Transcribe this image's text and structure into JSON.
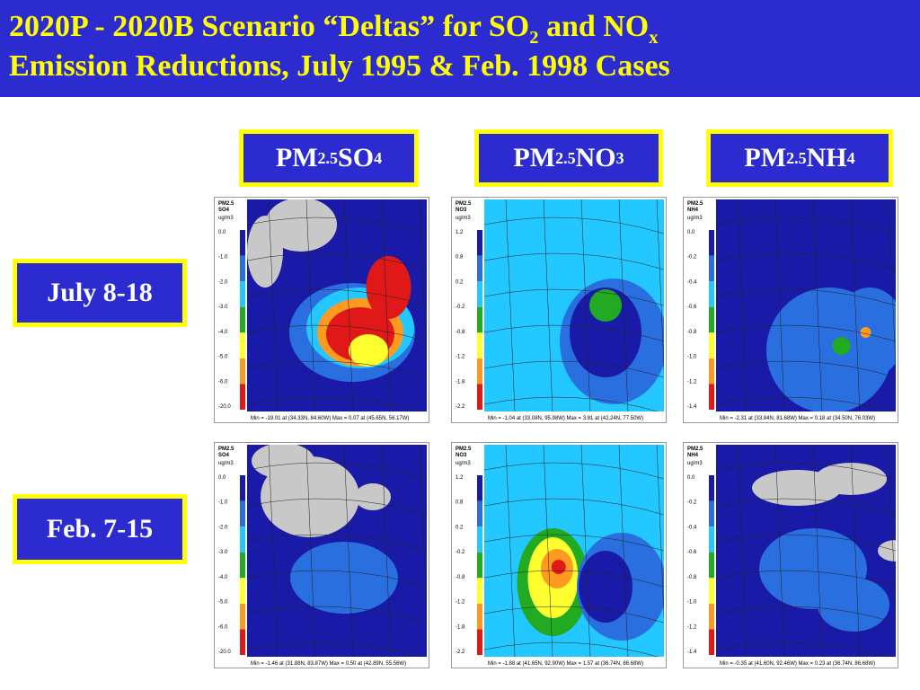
{
  "title": {
    "line1_pre": "2020P - 2020B Scenario “Deltas” for SO",
    "line1_sub": "2",
    "line1_mid": " and NO",
    "line1_sup": "x",
    "line2": "Emission Reductions,  July 1995 & Feb. 1998 Cases"
  },
  "columns": [
    {
      "pre": "PM",
      "sub": "2.5",
      "post": " SO",
      "post_sub": "4"
    },
    {
      "pre": "PM",
      "sub": "2.5",
      "post": " NO",
      "post_sub": "3"
    },
    {
      "pre": "PM",
      "sub": "2.5",
      "post": " NH",
      "post_sub": "4"
    }
  ],
  "rows": [
    {
      "label": "July 8-18"
    },
    {
      "label": "Feb. 7-15"
    }
  ],
  "maps": [
    {
      "species": "PM2.5\nSO4",
      "unit": "ug/m3",
      "ticks": [
        "0.0",
        "-1.0",
        "-2.0",
        "-3.0",
        "-4.0",
        "-5.0",
        "-6.0",
        "-20.0"
      ],
      "footer": "Min = -19.01 at (34.33N, 84.60W)        Max = 0.07 at (45.65N, 56.17W)"
    },
    {
      "species": "PM2.5\nNO3",
      "unit": "ug/m3",
      "ticks": [
        "1.2",
        "0.8",
        "0.2",
        "-0.2",
        "-0.8",
        "-1.2",
        "-1.8",
        "-2.2"
      ],
      "footer": "Min = -1.04 at (33.08N, 95.98W)        Max = 3.81 at (42.24N, 77.50W)"
    },
    {
      "species": "PM2.5\nNH4",
      "unit": "ug/m3",
      "ticks": [
        "0.0",
        "-0.2",
        "-0.4",
        "-0.6",
        "-0.8",
        "-1.0",
        "-1.2",
        "-1.4"
      ],
      "footer": "Min = -2.31 at (33.84N, 81.68W)        Max = 0.18 at (34.50N, 76.03W)"
    },
    {
      "species": "PM2.5\nSO4",
      "unit": "ug/m3",
      "ticks": [
        "0.0",
        "-1.0",
        "-2.0",
        "-3.0",
        "-4.0",
        "-5.0",
        "-6.0",
        "-20.0"
      ],
      "footer": "Min = -1.46 at (31.88N, 83.87W)        Max = 0.50 at (42.89N, 55.56W)"
    },
    {
      "species": "PM2.5\nNO3",
      "unit": "ug/m3",
      "ticks": [
        "1.2",
        "0.8",
        "0.2",
        "-0.2",
        "-0.8",
        "-1.2",
        "-1.8",
        "-2.2"
      ],
      "footer": "Min = -1.88 at (41.65N, 92.90W)        Max = 1.57 at (36.74N, 86.68W)"
    },
    {
      "species": "PM2.5\nNH4",
      "unit": "ug/m3",
      "ticks": [
        "0.0",
        "-0.2",
        "-0.4",
        "-0.6",
        "-0.8",
        "-1.0",
        "-1.2",
        "-1.4"
      ],
      "footer": "Min = -0.35 at (41.60N, 92.46W)        Max = 0.23 at (36.74N, 86.68W)"
    }
  ],
  "legend_colors": [
    "#1a1aa8",
    "#2a6fe0",
    "#22c8ff",
    "#22aa22",
    "#ffff30",
    "#ff9a20",
    "#e01818"
  ],
  "colors": {
    "title_bg": "#2b2bd0",
    "title_fg": "#ffff00",
    "box_border": "#ffff00",
    "box_fg": "#ffffff"
  }
}
